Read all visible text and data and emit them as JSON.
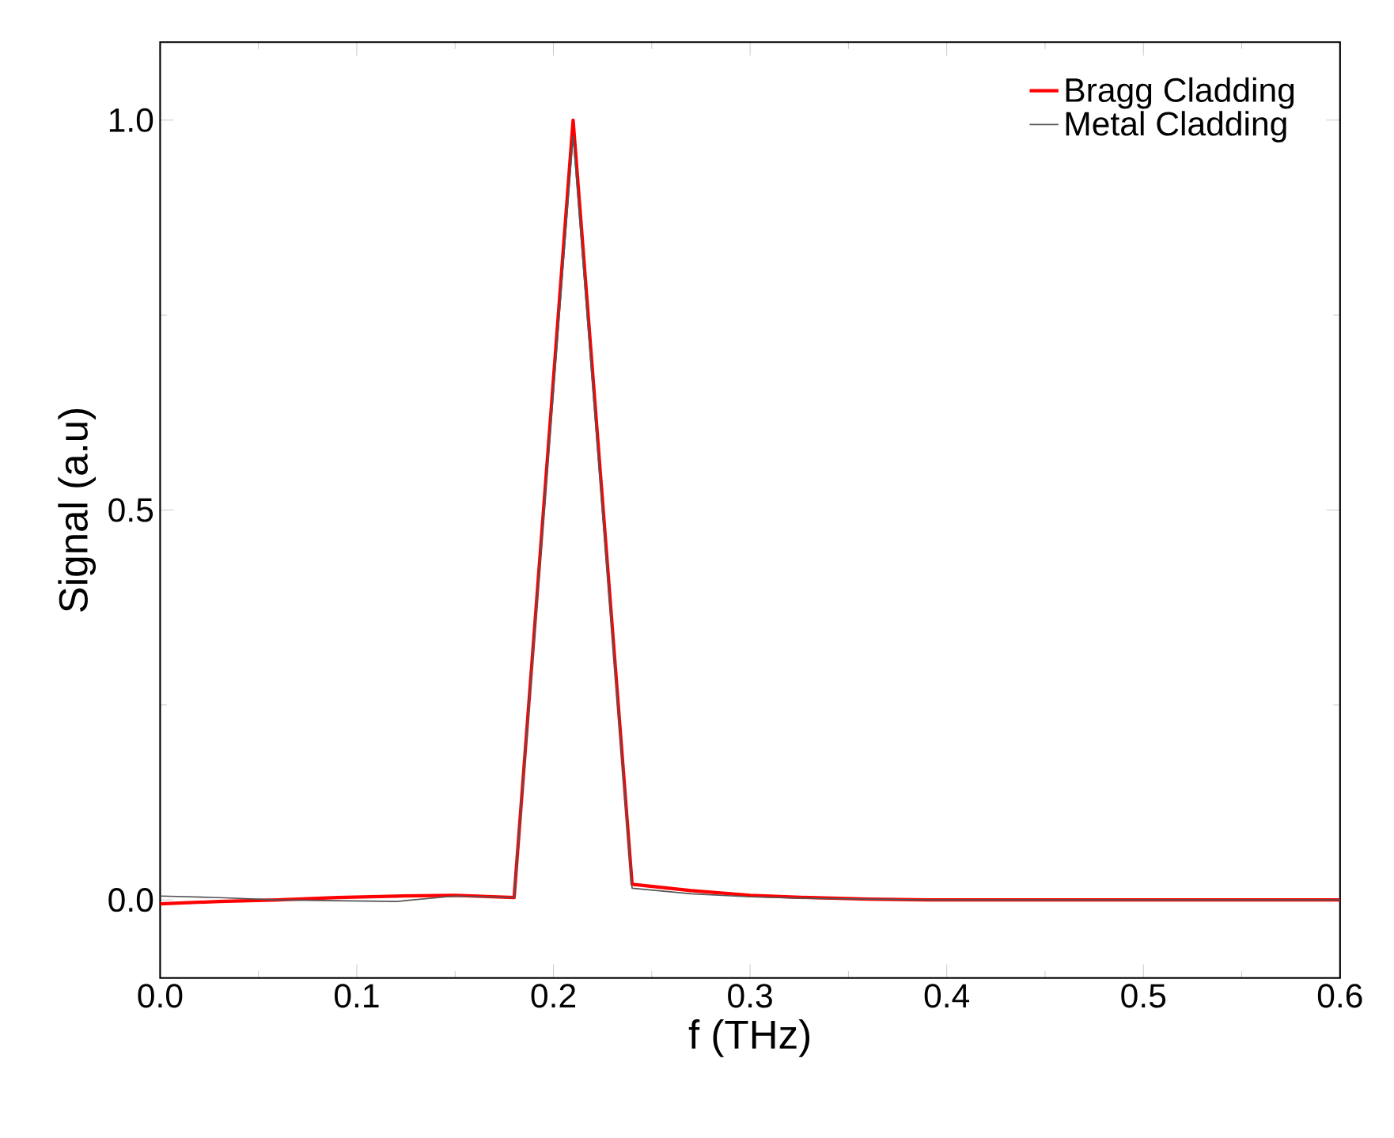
{
  "chart_data": {
    "type": "line",
    "xlabel": "f (THz)",
    "ylabel": "Signal (a.u)",
    "x": [
      0,
      0.03,
      0.06,
      0.09,
      0.12,
      0.15,
      0.18,
      0.21,
      0.24,
      0.27,
      0.3,
      0.33,
      0.36,
      0.39,
      0.42,
      0.45,
      0.48,
      0.51,
      0.54,
      0.57,
      0.6
    ],
    "series": [
      {
        "name": "Bragg Cladding",
        "color": "#ff0000",
        "values": [
          -0.005,
          -0.002,
          0.0,
          0.003,
          0.005,
          0.006,
          0.003,
          1.0,
          0.02,
          0.012,
          0.006,
          0.003,
          0.001,
          0.0,
          0.0,
          0.0,
          0.0,
          0.0,
          0.0,
          0.0,
          0.0
        ]
      },
      {
        "name": "Metal Cladding",
        "color": "#555555",
        "values": [
          0.005,
          0.003,
          0.0,
          -0.001,
          -0.002,
          0.005,
          0.003,
          0.98,
          0.015,
          0.008,
          0.004,
          0.002,
          0.001,
          0.0,
          0.0,
          0.0,
          0.0,
          0.0,
          0.0,
          0.0,
          0.0
        ]
      }
    ],
    "xlim": [
      0,
      0.6
    ],
    "ylim": [
      -0.1,
      1.1
    ],
    "xticks": [
      {
        "value": 0,
        "label": "0.0"
      },
      0.1,
      0.2,
      0.3,
      0.4,
      0.5,
      0.6
    ],
    "yticks": [
      {
        "value": 0,
        "label": "0.0"
      },
      0.5,
      {
        "value": 1,
        "label": "1.0"
      }
    ],
    "legend": "top right",
    "grid": false,
    "marker": "none",
    "line_style": "solid"
  }
}
